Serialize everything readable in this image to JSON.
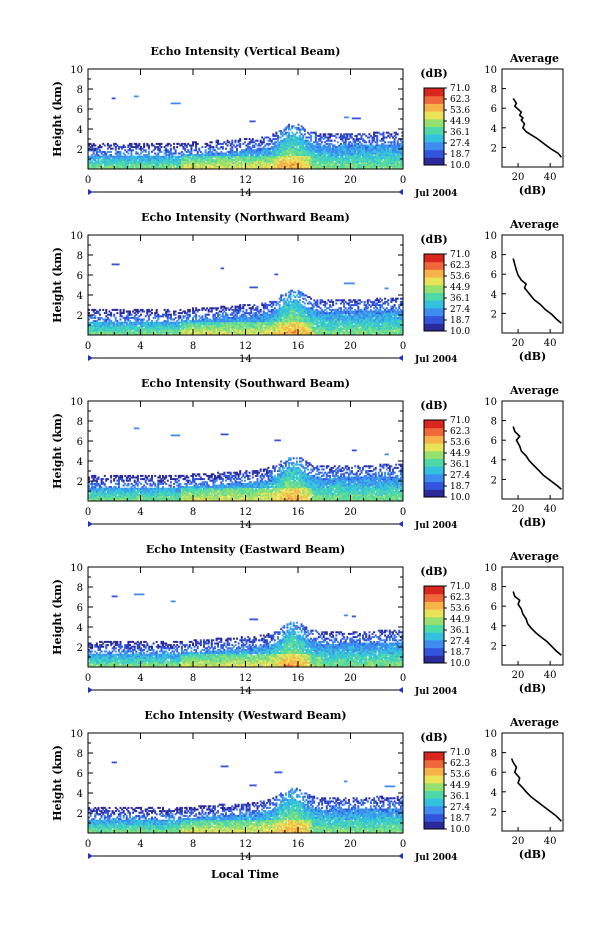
{
  "figure": {
    "xlabel": "Local Time",
    "date_label": "Jul 2004",
    "day_label": "14",
    "cbar_unit": "(dB)",
    "avg_title": "Average",
    "avg_xlabel": "(dB)",
    "ylabel": "Height (km)"
  },
  "colors": {
    "scale": [
      "#2a2a9a",
      "#3355dd",
      "#3f8cf0",
      "#35c0e0",
      "#4fd9a8",
      "#96e070",
      "#e9e35a",
      "#f7b24a",
      "#f0683a",
      "#d9261e"
    ]
  },
  "chart_data": [
    {
      "type": "heatmap",
      "title": "Echo Intensity (Vertical Beam)",
      "x_ticks": [
        "0",
        "4",
        "8",
        "12",
        "16",
        "20",
        "0"
      ],
      "xlim": [
        0,
        24
      ],
      "y_ticks": [
        "2",
        "4",
        "6",
        "8",
        "10"
      ],
      "ylim": [
        0,
        10
      ],
      "colorbar_ticks": [
        "71.0",
        "62.3",
        "53.6",
        "44.9",
        "36.1",
        "27.4",
        "18.7",
        "10.0"
      ],
      "colorbar_range": [
        10.0,
        71.0
      ],
      "average_profile": {
        "title": "Average",
        "xlabel": "(dB)",
        "x_ticks": [
          "20",
          "40"
        ],
        "y_ticks": [
          "2",
          "4",
          "6",
          "8",
          "10"
        ],
        "x": [
          47,
          45,
          40,
          36,
          32,
          28,
          25,
          23,
          24,
          22,
          23,
          21,
          22,
          20,
          18,
          19,
          17
        ],
        "y": [
          1.0,
          1.4,
          1.9,
          2.4,
          2.9,
          3.3,
          3.6,
          4.0,
          4.4,
          4.8,
          5.0,
          5.3,
          5.6,
          5.9,
          6.2,
          6.5,
          7.0
        ]
      }
    },
    {
      "type": "heatmap",
      "title": "Echo Intensity (Northward Beam)",
      "x_ticks": [
        "0",
        "4",
        "8",
        "12",
        "16",
        "20",
        "0"
      ],
      "xlim": [
        0,
        24
      ],
      "y_ticks": [
        "2",
        "4",
        "6",
        "8",
        "10"
      ],
      "ylim": [
        0,
        10
      ],
      "colorbar_ticks": [
        "71.0",
        "62.3",
        "53.6",
        "44.9",
        "36.1",
        "27.4",
        "18.7",
        "10.0"
      ],
      "colorbar_range": [
        10.0,
        71.0
      ],
      "average_profile": {
        "title": "Average",
        "xlabel": "(dB)",
        "x_ticks": [
          "20",
          "40"
        ],
        "y_ticks": [
          "2",
          "4",
          "6",
          "8",
          "10"
        ],
        "x": [
          47,
          44,
          41,
          37,
          34,
          30,
          28,
          26,
          24,
          25,
          22,
          20,
          19,
          18,
          17
        ],
        "y": [
          1.0,
          1.4,
          1.9,
          2.4,
          2.9,
          3.4,
          3.8,
          4.2,
          4.6,
          5.0,
          5.4,
          5.9,
          6.4,
          7.0,
          7.6
        ]
      }
    },
    {
      "type": "heatmap",
      "title": "Echo Intensity (Southward Beam)",
      "x_ticks": [
        "0",
        "4",
        "8",
        "12",
        "16",
        "20",
        "0"
      ],
      "xlim": [
        0,
        24
      ],
      "y_ticks": [
        "2",
        "4",
        "6",
        "8",
        "10"
      ],
      "ylim": [
        0,
        10
      ],
      "colorbar_ticks": [
        "71.0",
        "62.3",
        "53.6",
        "44.9",
        "36.1",
        "27.4",
        "18.7",
        "10.0"
      ],
      "colorbar_range": [
        10.0,
        71.0
      ],
      "average_profile": {
        "title": "Average",
        "xlabel": "(dB)",
        "x_ticks": [
          "20",
          "40"
        ],
        "y_ticks": [
          "2",
          "4",
          "6",
          "8",
          "10"
        ],
        "x": [
          47,
          44,
          40,
          36,
          33,
          30,
          27,
          25,
          22,
          21,
          19,
          21,
          18,
          17
        ],
        "y": [
          1.0,
          1.4,
          1.9,
          2.4,
          2.9,
          3.4,
          3.9,
          4.4,
          4.9,
          5.4,
          6.0,
          6.4,
          6.9,
          7.4
        ]
      }
    },
    {
      "type": "heatmap",
      "title": "Echo Intensity (Eastward Beam)",
      "x_ticks": [
        "0",
        "4",
        "8",
        "12",
        "16",
        "20",
        "0"
      ],
      "xlim": [
        0,
        24
      ],
      "y_ticks": [
        "2",
        "4",
        "6",
        "8",
        "10"
      ],
      "ylim": [
        0,
        10
      ],
      "colorbar_ticks": [
        "71.0",
        "62.3",
        "53.6",
        "44.9",
        "36.1",
        "27.4",
        "18.7",
        "10.0"
      ],
      "colorbar_range": [
        10.0,
        71.0
      ],
      "average_profile": {
        "title": "Average",
        "xlabel": "(dB)",
        "x_ticks": [
          "20",
          "40"
        ],
        "y_ticks": [
          "2",
          "4",
          "6",
          "8",
          "10"
        ],
        "x": [
          47,
          44,
          41,
          38,
          34,
          31,
          28,
          26,
          25,
          23,
          22,
          20,
          21,
          18,
          17
        ],
        "y": [
          1.0,
          1.4,
          1.9,
          2.4,
          2.9,
          3.3,
          3.8,
          4.2,
          4.7,
          5.2,
          5.7,
          6.2,
          6.6,
          7.0,
          7.5
        ]
      }
    },
    {
      "type": "heatmap",
      "title": "Echo Intensity (Westward Beam)",
      "x_ticks": [
        "0",
        "4",
        "8",
        "12",
        "16",
        "20",
        "0"
      ],
      "xlim": [
        0,
        24
      ],
      "y_ticks": [
        "2",
        "4",
        "6",
        "8",
        "10"
      ],
      "ylim": [
        0,
        10
      ],
      "colorbar_ticks": [
        "71.0",
        "62.3",
        "53.6",
        "44.9",
        "36.1",
        "27.4",
        "18.7",
        "10.0"
      ],
      "colorbar_range": [
        10.0,
        71.0
      ],
      "average_profile": {
        "title": "Average",
        "xlabel": "(dB)",
        "x_ticks": [
          "20",
          "40"
        ],
        "y_ticks": [
          "2",
          "4",
          "6",
          "8",
          "10"
        ],
        "x": [
          47,
          44,
          40,
          36,
          32,
          28,
          25,
          23,
          20,
          21,
          18,
          19,
          17,
          16
        ],
        "y": [
          1.0,
          1.5,
          2.0,
          2.5,
          3.0,
          3.5,
          4.0,
          4.4,
          4.9,
          5.4,
          6.0,
          6.5,
          7.0,
          7.4
        ]
      }
    }
  ]
}
